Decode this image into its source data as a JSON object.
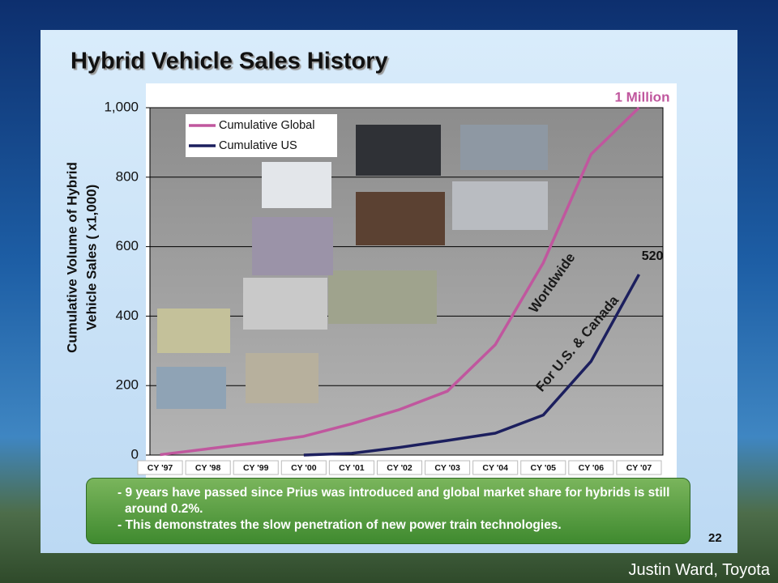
{
  "chart_data": {
    "type": "line",
    "title": "Hybrid Vehicle Sales History",
    "y_label": [
      "Cumulative Volume of Hybrid",
      "Vehicle Sales  ( x1,000)"
    ],
    "categories": [
      "CY '97",
      "CY '98",
      "CY '99",
      "CY '00",
      "CY '01",
      "CY '02",
      "CY '03",
      "CY '04",
      "CY '05",
      "CY '06",
      "CY '07"
    ],
    "series": [
      {
        "name": "Cumulative Global",
        "color": "#c0579e",
        "values": [
          1,
          18,
          35,
          54,
          90,
          131,
          184,
          318,
          553,
          866,
          1000
        ],
        "value_labels": [
          null,
          null,
          null,
          null,
          null,
          null,
          null,
          null,
          null,
          null,
          "1 Million"
        ]
      },
      {
        "name": "Cumulative US",
        "color": "#1c1f5e",
        "values": [
          null,
          null,
          null,
          0,
          5,
          22,
          42,
          63,
          115,
          270,
          520
        ]
      }
    ],
    "ylim": [
      0,
      1000
    ],
    "yticks": [
      0,
      200,
      400,
      600,
      800,
      {
        "value": 1000,
        "label": "1,000"
      }
    ],
    "grid": true,
    "legend": "top-left",
    "annotations": [
      {
        "text": "Worldwide",
        "color": "#1a1a1a"
      },
      {
        "text": "For U.S. & Canada",
        "color": "#1a1a1a"
      }
    ]
  },
  "notes": [
    "- 9 years have passed since Prius was introduced and global market share for hybrids is still around 0.2%.",
    "- This demonstrates the slow penetration of new power train technologies."
  ],
  "page_number": "22",
  "credit": "Justin Ward, Toyota"
}
